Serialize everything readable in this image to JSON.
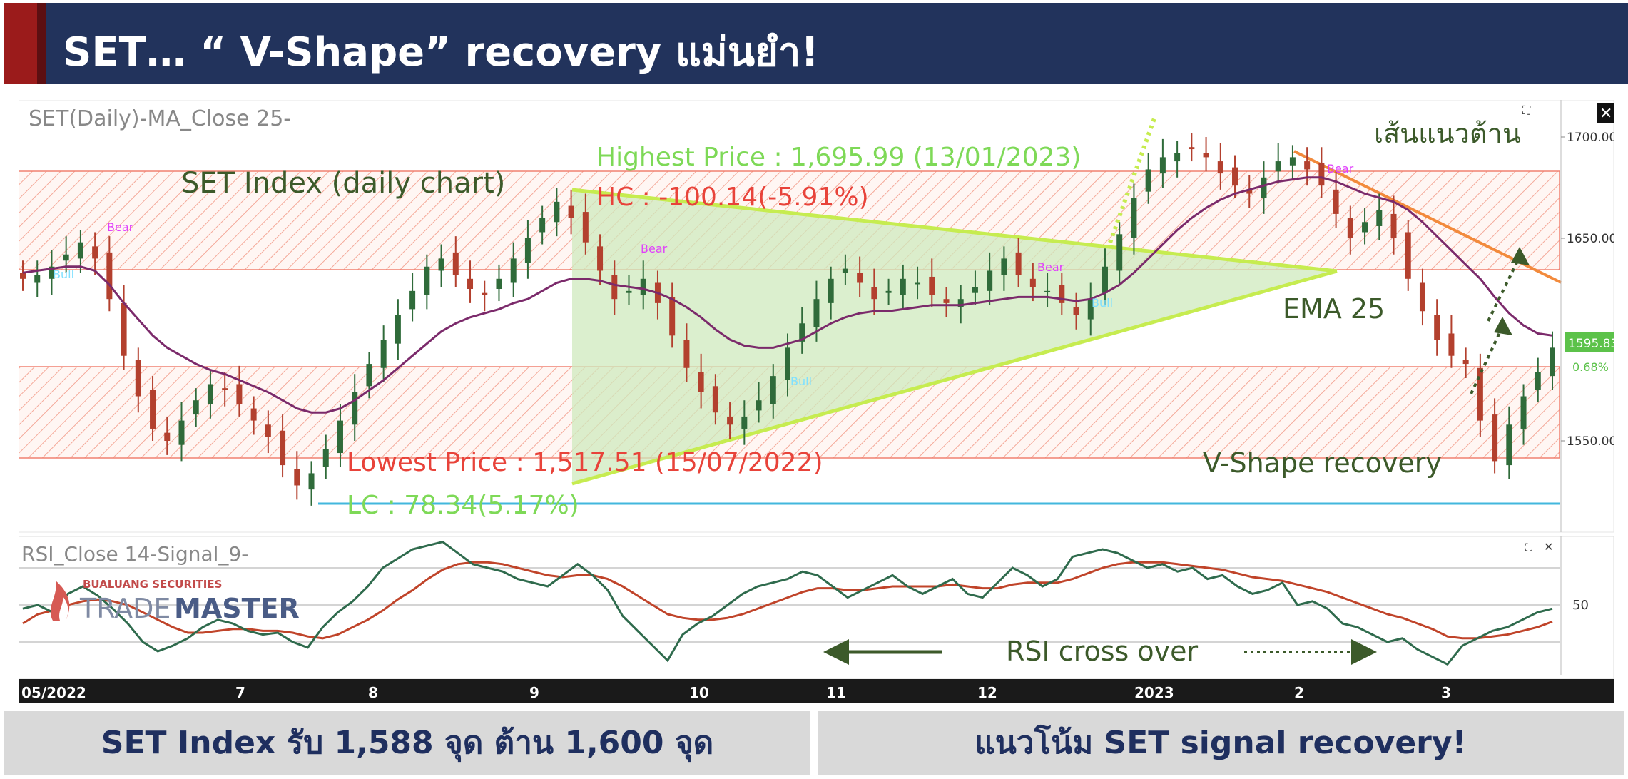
{
  "header": {
    "title": "SET… “ V-Shape” recovery แม่นยำ!"
  },
  "footer": {
    "left": "SET Index รับ 1,588 จุด ต้าน 1,600 จุด",
    "right": "แนวโน้ม SET signal recovery!"
  },
  "logo": {
    "company": "BUALUANG SECURITIES",
    "brand_a": "TRADE",
    "brand_b": "MASTER"
  },
  "chart_data": [
    {
      "type": "line",
      "panel": "price",
      "title": "SET(Daily)-MA_Close 25-",
      "x_ticks": [
        "05/2022",
        "7",
        "8",
        "9",
        "10",
        "11",
        "12",
        "2023",
        "2",
        "3"
      ],
      "y_ticks": [
        "1700.00",
        "1650.00",
        "1550.00"
      ],
      "ylim": [
        1510,
        1705
      ],
      "last_price": "1595.83",
      "last_change": "0.68%",
      "series": [
        {
          "values": [
            1630,
            1632,
            1636,
            1642,
            1648,
            1640,
            1620,
            1592,
            1572,
            1556,
            1550,
            1560,
            1570,
            1578,
            1575,
            1568,
            1560,
            1552,
            1538,
            1528,
            1534,
            1546,
            1560,
            1574,
            1588,
            1600,
            1612,
            1624,
            1636,
            1640,
            1632,
            1625,
            1622,
            1630,
            1640,
            1650,
            1660,
            1668,
            1660,
            1648,
            1634,
            1620,
            1624,
            1630,
            1618,
            1602,
            1586,
            1574,
            1564,
            1558,
            1562,
            1570,
            1582,
            1596,
            1608,
            1620,
            1630,
            1635,
            1628,
            1620,
            1624,
            1630,
            1628,
            1622,
            1618,
            1620,
            1626,
            1634,
            1640,
            1632,
            1626,
            1624,
            1618,
            1612,
            1620,
            1636,
            1652,
            1670,
            1684,
            1690,
            1692,
            1694,
            1690,
            1682,
            1676,
            1672,
            1680,
            1688,
            1690,
            1684,
            1676,
            1662,
            1650,
            1658,
            1664,
            1650,
            1630,
            1614,
            1600,
            1592,
            1588,
            1560,
            1540,
            1558,
            1572,
            1584,
            1596
          ]
        },
        {
          "name": "EMA 25",
          "values": [
            1633,
            1634,
            1635,
            1636,
            1636,
            1634,
            1627,
            1618,
            1610,
            1602,
            1596,
            1592,
            1588,
            1585,
            1583,
            1580,
            1577,
            1574,
            1570,
            1566,
            1564,
            1564,
            1566,
            1570,
            1575,
            1580,
            1586,
            1592,
            1598,
            1604,
            1608,
            1611,
            1613,
            1615,
            1618,
            1620,
            1624,
            1628,
            1630,
            1630,
            1629,
            1627,
            1626,
            1625,
            1623,
            1620,
            1616,
            1611,
            1605,
            1600,
            1597,
            1596,
            1596,
            1598,
            1600,
            1604,
            1608,
            1611,
            1613,
            1614,
            1614,
            1615,
            1616,
            1617,
            1617,
            1617,
            1618,
            1619,
            1620,
            1621,
            1621,
            1621,
            1620,
            1619,
            1620,
            1623,
            1627,
            1633,
            1640,
            1647,
            1654,
            1660,
            1665,
            1669,
            1672,
            1674,
            1676,
            1678,
            1679,
            1680,
            1680,
            1678,
            1675,
            1672,
            1670,
            1668,
            1664,
            1658,
            1651,
            1644,
            1637,
            1630,
            1621,
            1613,
            1607,
            1603,
            1602
          ]
        }
      ],
      "annotations": [
        "SET Index (daily chart)",
        "Highest Price : 1,695.99 (13/01/2023)",
        "HC : -100.14(-5.91%)",
        "Lowest Price : 1,517.51 (15/07/2022)",
        "LC : 78.34(5.17%)",
        "EMA 25",
        "เส้นแนวต้าน",
        "V-Shape recovery",
        "Bear",
        "Bull"
      ]
    },
    {
      "type": "line",
      "panel": "rsi",
      "title": "RSI_Close 14-Signal_9-",
      "y_ticks": [
        "50"
      ],
      "ylim": [
        0,
        100
      ],
      "series": [
        {
          "values": [
            48,
            50,
            46,
            56,
            60,
            55,
            48,
            40,
            30,
            25,
            28,
            32,
            38,
            42,
            40,
            36,
            34,
            35,
            30,
            27,
            38,
            46,
            52,
            60,
            70,
            75,
            80,
            82,
            84,
            78,
            72,
            70,
            68,
            64,
            62,
            60,
            66,
            72,
            66,
            58,
            44,
            36,
            28,
            20,
            34,
            40,
            44,
            50,
            56,
            60,
            62,
            64,
            68,
            66,
            60,
            54,
            58,
            62,
            66,
            60,
            56,
            60,
            64,
            56,
            54,
            62,
            70,
            66,
            60,
            64,
            76,
            78,
            80,
            78,
            74,
            70,
            72,
            68,
            70,
            64,
            66,
            60,
            56,
            58,
            62,
            50,
            52,
            48,
            40,
            38,
            34,
            30,
            32,
            26,
            22,
            18,
            28,
            32,
            36,
            38,
            42,
            46,
            48
          ]
        },
        {
          "values": [
            40,
            45,
            47,
            50,
            52,
            53,
            52,
            50,
            46,
            42,
            38,
            35,
            35,
            36,
            37,
            37,
            36,
            36,
            35,
            33,
            32,
            34,
            38,
            42,
            47,
            53,
            58,
            64,
            69,
            72,
            73,
            73,
            72,
            70,
            68,
            66,
            65,
            66,
            66,
            64,
            60,
            55,
            50,
            45,
            43,
            42,
            42,
            43,
            45,
            48,
            51,
            54,
            57,
            59,
            59,
            58,
            58,
            59,
            60,
            60,
            60,
            60,
            61,
            60,
            59,
            59,
            61,
            62,
            62,
            62,
            64,
            67,
            70,
            72,
            73,
            73,
            73,
            72,
            71,
            70,
            69,
            67,
            65,
            64,
            63,
            61,
            59,
            57,
            54,
            51,
            48,
            45,
            43,
            40,
            37,
            33,
            32,
            32,
            33,
            34,
            36,
            38,
            41
          ]
        }
      ],
      "annotations": [
        "RSI cross over"
      ]
    }
  ]
}
